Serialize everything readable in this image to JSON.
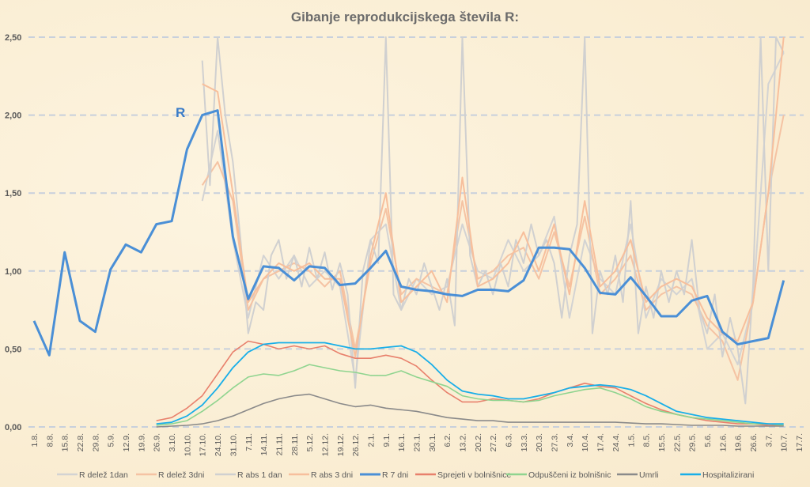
{
  "chart_data": {
    "type": "line",
    "title": "Gibanje reprodukcijskega števila R:",
    "annotation": "R",
    "ylim": [
      0,
      2.5
    ],
    "yticks": [
      "0,00",
      "0,50",
      "1,00",
      "1,50",
      "2,00",
      "2,50"
    ],
    "ytick_values": [
      0,
      0.5,
      1,
      1.5,
      2,
      2.5
    ],
    "grid": true,
    "legend_position": "bottom",
    "x_unit": "days since 1.8.",
    "x_ticks_step_days": 7,
    "x_tick_labels": [
      "1.8.",
      "8.8.",
      "15.8.",
      "22.8.",
      "29.8.",
      "5.9.",
      "12.9.",
      "19.9.",
      "26.9.",
      "3.10.",
      "10.10.",
      "17.10.",
      "24.10.",
      "31.10.",
      "7.11.",
      "14.11.",
      "21.11.",
      "28.11.",
      "5.12.",
      "12.12.",
      "19.12.",
      "26.12.",
      "2.1.",
      "9.1.",
      "16.1.",
      "23.1.",
      "30.1.",
      "6.2.",
      "13.2.",
      "20.2.",
      "27.2.",
      "6.3.",
      "13.3.",
      "20.3.",
      "27.3.",
      "3.4.",
      "10.4.",
      "17.4.",
      "24.4.",
      "1.5.",
      "8.5.",
      "15.5.",
      "22.5.",
      "29.5.",
      "5.6.",
      "12.6.",
      "19.6.",
      "26.6.",
      "3.7.",
      "10.7.",
      "17.7."
    ],
    "series": [
      {
        "name": "R delež 1dan",
        "color": "#d3d3d3",
        "width": 2,
        "start_day": 77,
        "step_days": 7,
        "values": [
          1.45,
          1.9,
          1.2,
          0.7,
          1.1,
          0.95,
          1.1,
          0.9,
          1.0,
          0.9,
          0.3,
          1.2,
          1.3,
          0.75,
          0.95,
          0.85,
          0.9,
          1.3,
          1.0,
          0.95,
          1.2,
          1.0,
          1.1,
          1.35,
          0.7,
          1.2,
          0.95,
          0.85,
          1.3,
          0.7,
          0.95,
          0.85,
          0.95,
          0.5,
          0.6,
          0.4,
          0.8,
          2.2,
          2.4
        ]
      },
      {
        "name": "R delež 3dni",
        "color": "#f5c3a3",
        "width": 2,
        "start_day": 77,
        "step_days": 7,
        "values": [
          1.55,
          1.7,
          1.45,
          0.75,
          0.95,
          1.0,
          1.05,
          1.0,
          0.9,
          1.0,
          0.5,
          1.05,
          1.4,
          0.85,
          0.95,
          0.9,
          0.85,
          1.45,
          0.95,
          1.0,
          1.1,
          1.15,
          0.95,
          1.25,
          0.9,
          1.35,
          0.85,
          0.95,
          1.1,
          0.75,
          0.85,
          0.9,
          0.85,
          0.65,
          0.55,
          0.3,
          0.8,
          1.5,
          2.0
        ]
      },
      {
        "name": "R abs 1 dan",
        "color": "#d0d0d0",
        "width": 2,
        "start_day": 77,
        "step_days": 3.5,
        "values": [
          2.35,
          1.55,
          2.5,
          2.0,
          1.7,
          1.2,
          0.6,
          0.8,
          0.75,
          1.1,
          1.2,
          0.95,
          1.1,
          0.9,
          1.15,
          0.95,
          1.12,
          0.88,
          1.05,
          0.85,
          0.25,
          1.0,
          1.2,
          1.05,
          2.5,
          0.85,
          0.75,
          0.95,
          0.85,
          1.05,
          0.9,
          0.75,
          0.95,
          0.65,
          2.5,
          1.1,
          0.9,
          1.0,
          0.85,
          1.05,
          0.9,
          1.2,
          1.05,
          1.3,
          1.1,
          1.2,
          1.05,
          0.7,
          1.1,
          1.3,
          2.5,
          0.6,
          1.0,
          0.85,
          1.1,
          0.8,
          1.45,
          0.6,
          0.9,
          0.7,
          1.0,
          0.8,
          1.0,
          0.85,
          1.2,
          0.75,
          0.6,
          0.85,
          0.45,
          0.7,
          0.5,
          0.15,
          0.9,
          2.5,
          1.0,
          2.5,
          2.4
        ]
      },
      {
        "name": "R abs 3 dni",
        "color": "#f7bf9c",
        "width": 2,
        "start_day": 77,
        "step_days": 7,
        "values": [
          2.2,
          2.15,
          1.5,
          0.8,
          0.95,
          1.05,
          1.0,
          1.05,
          0.95,
          0.95,
          0.45,
          1.1,
          1.5,
          0.8,
          0.9,
          1.0,
          0.8,
          1.6,
          0.9,
          0.95,
          1.05,
          1.25,
          1.0,
          1.3,
          0.85,
          1.45,
          0.9,
          1.0,
          1.2,
          0.8,
          0.9,
          0.95,
          0.9,
          0.7,
          0.6,
          0.55,
          0.8,
          1.5,
          2.5
        ]
      },
      {
        "name": "R 7 dni",
        "color": "#4a8fd6",
        "width": 3,
        "start_day": 0,
        "step_days": 7,
        "values": [
          0.68,
          0.46,
          1.12,
          0.68,
          0.61,
          1.01,
          1.17,
          1.12,
          1.3,
          1.32,
          1.78,
          2.0,
          2.03,
          1.22,
          0.82,
          1.03,
          1.02,
          0.94,
          1.03,
          1.02,
          0.91,
          0.92,
          1.02,
          1.13,
          0.9,
          0.88,
          0.87,
          0.85,
          0.84,
          0.88,
          0.88,
          0.87,
          0.94,
          1.15,
          1.15,
          1.14,
          1.02,
          0.86,
          0.85,
          0.96,
          0.84,
          0.71,
          0.71,
          0.81,
          0.84,
          0.61,
          0.53,
          0.55,
          0.57,
          0.94
        ]
      },
      {
        "name": "Sprejeti v bolnišnice",
        "color": "#e8806c",
        "width": 1.6,
        "start_day": 56,
        "step_days": 7,
        "values": [
          0.04,
          0.06,
          0.12,
          0.2,
          0.34,
          0.48,
          0.55,
          0.53,
          0.5,
          0.52,
          0.5,
          0.52,
          0.47,
          0.44,
          0.44,
          0.46,
          0.44,
          0.39,
          0.3,
          0.22,
          0.16,
          0.16,
          0.18,
          0.17,
          0.16,
          0.18,
          0.22,
          0.25,
          0.28,
          0.26,
          0.25,
          0.2,
          0.15,
          0.11,
          0.08,
          0.06,
          0.04,
          0.03,
          0.02,
          0.02,
          0.01,
          0.01
        ]
      },
      {
        "name": "Odpuščeni iz bolnišnic",
        "color": "#8fd48f",
        "width": 1.6,
        "start_day": 56,
        "step_days": 7,
        "values": [
          0.01,
          0.02,
          0.04,
          0.1,
          0.17,
          0.25,
          0.32,
          0.34,
          0.33,
          0.36,
          0.4,
          0.38,
          0.36,
          0.35,
          0.33,
          0.33,
          0.36,
          0.32,
          0.29,
          0.26,
          0.2,
          0.18,
          0.17,
          0.17,
          0.16,
          0.17,
          0.2,
          0.22,
          0.24,
          0.25,
          0.22,
          0.18,
          0.13,
          0.1,
          0.08,
          0.06,
          0.05,
          0.04,
          0.03,
          0.02,
          0.02,
          0.01
        ]
      },
      {
        "name": "Umrli",
        "color": "#8a8a8a",
        "width": 1.6,
        "start_day": 56,
        "step_days": 7,
        "values": [
          0.0,
          0.005,
          0.01,
          0.02,
          0.04,
          0.07,
          0.11,
          0.15,
          0.18,
          0.2,
          0.21,
          0.18,
          0.15,
          0.13,
          0.14,
          0.12,
          0.11,
          0.1,
          0.08,
          0.06,
          0.05,
          0.04,
          0.04,
          0.03,
          0.03,
          0.03,
          0.03,
          0.03,
          0.03,
          0.03,
          0.03,
          0.025,
          0.02,
          0.02,
          0.015,
          0.01,
          0.01,
          0.01,
          0.005,
          0.005,
          0.005,
          0.005
        ]
      },
      {
        "name": "Hospitalizirani",
        "color": "#18aee8",
        "width": 1.8,
        "start_day": 56,
        "step_days": 7,
        "values": [
          0.02,
          0.03,
          0.07,
          0.14,
          0.25,
          0.38,
          0.48,
          0.53,
          0.54,
          0.54,
          0.54,
          0.54,
          0.52,
          0.5,
          0.5,
          0.51,
          0.52,
          0.48,
          0.4,
          0.3,
          0.23,
          0.21,
          0.2,
          0.18,
          0.18,
          0.2,
          0.22,
          0.25,
          0.26,
          0.27,
          0.26,
          0.24,
          0.2,
          0.15,
          0.1,
          0.08,
          0.06,
          0.05,
          0.04,
          0.03,
          0.02,
          0.02
        ]
      }
    ]
  }
}
